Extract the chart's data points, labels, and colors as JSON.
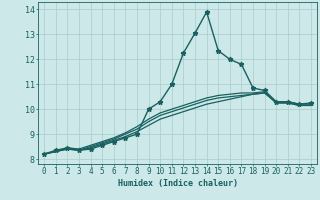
{
  "xlabel": "Humidex (Indice chaleur)",
  "ylabel": "",
  "xlim": [
    -0.5,
    23.5
  ],
  "ylim": [
    7.8,
    14.3
  ],
  "yticks": [
    8,
    9,
    10,
    11,
    12,
    13,
    14
  ],
  "xticks": [
    0,
    1,
    2,
    3,
    4,
    5,
    6,
    7,
    8,
    9,
    10,
    11,
    12,
    13,
    14,
    15,
    16,
    17,
    18,
    19,
    20,
    21,
    22,
    23
  ],
  "bg_color": "#cce8e8",
  "grid_color": "#aacccc",
  "line_color": "#1a6060",
  "lines": [
    {
      "x": [
        0,
        1,
        2,
        3,
        4,
        5,
        6,
        7,
        8,
        9,
        10,
        11,
        12,
        13,
        14,
        15,
        16,
        17,
        18,
        19,
        20,
        21,
        22,
        23
      ],
      "y": [
        8.2,
        8.35,
        8.45,
        8.35,
        8.4,
        8.55,
        8.7,
        8.85,
        9.0,
        10.0,
        10.3,
        11.0,
        12.25,
        13.05,
        13.9,
        12.35,
        12.0,
        11.8,
        10.85,
        10.75,
        10.3,
        10.3,
        10.2,
        10.25
      ],
      "marker": "*",
      "markersize": 3.5,
      "linewidth": 1.0
    },
    {
      "x": [
        0,
        1,
        2,
        3,
        4,
        5,
        6,
        7,
        8,
        9,
        10,
        11,
        12,
        13,
        14,
        15,
        16,
        17,
        18,
        19,
        20,
        21,
        22,
        23
      ],
      "y": [
        8.2,
        8.3,
        8.4,
        8.35,
        8.45,
        8.6,
        8.75,
        8.9,
        9.1,
        9.35,
        9.6,
        9.75,
        9.9,
        10.05,
        10.2,
        10.3,
        10.4,
        10.5,
        10.6,
        10.65,
        10.3,
        10.3,
        10.2,
        10.2
      ],
      "marker": null,
      "markersize": 0,
      "linewidth": 0.9
    },
    {
      "x": [
        0,
        1,
        2,
        3,
        4,
        5,
        6,
        7,
        8,
        9,
        10,
        11,
        12,
        13,
        14,
        15,
        16,
        17,
        18,
        19,
        20,
        21,
        22,
        23
      ],
      "y": [
        8.2,
        8.3,
        8.4,
        8.35,
        8.5,
        8.65,
        8.8,
        9.0,
        9.2,
        9.5,
        9.75,
        9.9,
        10.05,
        10.2,
        10.35,
        10.45,
        10.5,
        10.55,
        10.6,
        10.65,
        10.25,
        10.25,
        10.15,
        10.15
      ],
      "marker": null,
      "markersize": 0,
      "linewidth": 0.9
    },
    {
      "x": [
        0,
        1,
        2,
        3,
        4,
        5,
        6,
        7,
        8,
        9,
        10,
        11,
        12,
        13,
        14,
        15,
        16,
        17,
        18,
        19,
        20,
        21,
        22,
        23
      ],
      "y": [
        8.2,
        8.3,
        8.45,
        8.4,
        8.55,
        8.7,
        8.85,
        9.05,
        9.3,
        9.6,
        9.85,
        10.0,
        10.15,
        10.3,
        10.45,
        10.55,
        10.6,
        10.65,
        10.65,
        10.7,
        10.25,
        10.25,
        10.15,
        10.15
      ],
      "marker": null,
      "markersize": 0,
      "linewidth": 0.9
    }
  ]
}
